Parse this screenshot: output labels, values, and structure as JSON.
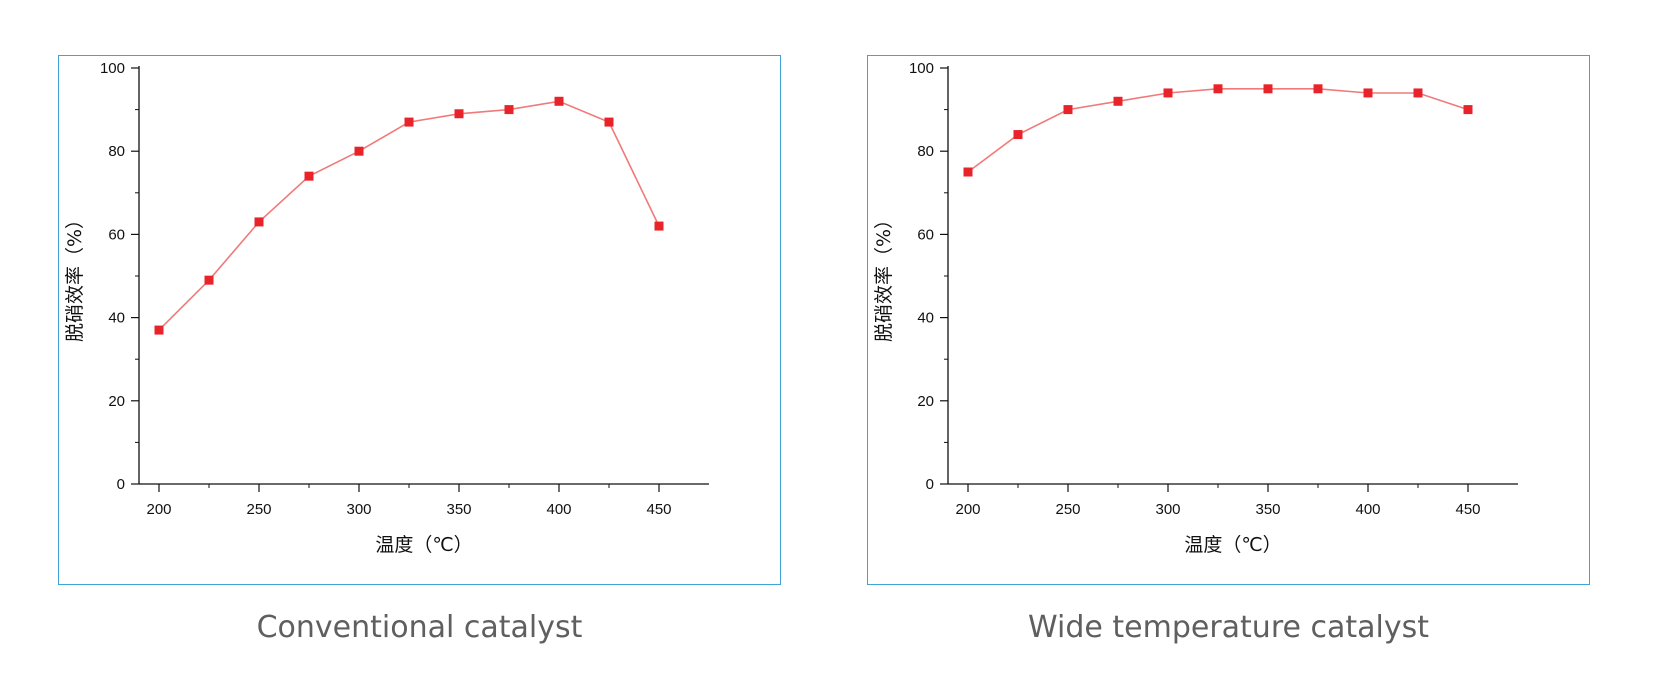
{
  "colors": {
    "frame": "#3fa3d6",
    "series": "#e8232a",
    "line": "#f07a7a",
    "caption": "#5f5f5f"
  },
  "captions": {
    "left": "Conventional catalyst",
    "right": "Wide temperature catalyst"
  },
  "chart_data": [
    {
      "type": "line",
      "title": "",
      "xlabel": "温度（℃）",
      "ylabel": "脱硝效率（%）",
      "xlim": [
        190,
        475
      ],
      "ylim": [
        0,
        100
      ],
      "xticks": [
        200,
        250,
        300,
        350,
        400,
        450
      ],
      "yticks": [
        0,
        20,
        40,
        60,
        80,
        100
      ],
      "grid": false,
      "x": [
        200,
        225,
        250,
        275,
        300,
        325,
        350,
        375,
        400,
        425,
        450
      ],
      "series": [
        {
          "values": [
            37,
            49,
            63,
            74,
            80,
            87,
            89,
            90,
            92,
            87,
            62
          ]
        }
      ]
    },
    {
      "type": "line",
      "title": "",
      "xlabel": "温度（℃）",
      "ylabel": "脱硝效率（%）",
      "xlim": [
        190,
        475
      ],
      "ylim": [
        0,
        100
      ],
      "xticks": [
        200,
        250,
        300,
        350,
        400,
        450
      ],
      "yticks": [
        0,
        20,
        40,
        60,
        80,
        100
      ],
      "grid": false,
      "x": [
        200,
        225,
        250,
        275,
        300,
        325,
        350,
        375,
        400,
        425,
        450
      ],
      "series": [
        {
          "values": [
            75,
            84,
            90,
            92,
            94,
            95,
            95,
            95,
            94,
            94,
            90
          ]
        }
      ]
    }
  ]
}
